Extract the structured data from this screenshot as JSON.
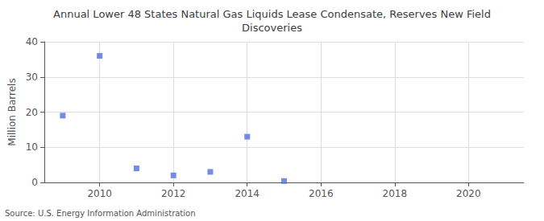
{
  "chart_data": {
    "type": "scatter",
    "title": "Annual Lower 48 States Natural Gas Liquids Lease Condensate, Reserves New Field\nDiscoveries",
    "ylabel": "Million Barrels",
    "source": "Source: U.S. Energy Information Administration",
    "x": [
      2009,
      2010,
      2011,
      2012,
      2013,
      2014,
      2015
    ],
    "values": [
      19.0,
      36.0,
      4.0,
      2.0,
      3.0,
      13.0,
      0.4
    ],
    "marker": "square",
    "xlim": [
      2008.5,
      2021.5
    ],
    "xticks": [
      2010,
      2012,
      2014,
      2016,
      2018,
      2020
    ],
    "ylim": [
      0,
      40
    ],
    "yticks": [
      0,
      10,
      20,
      30,
      40
    ],
    "grid": true
  }
}
